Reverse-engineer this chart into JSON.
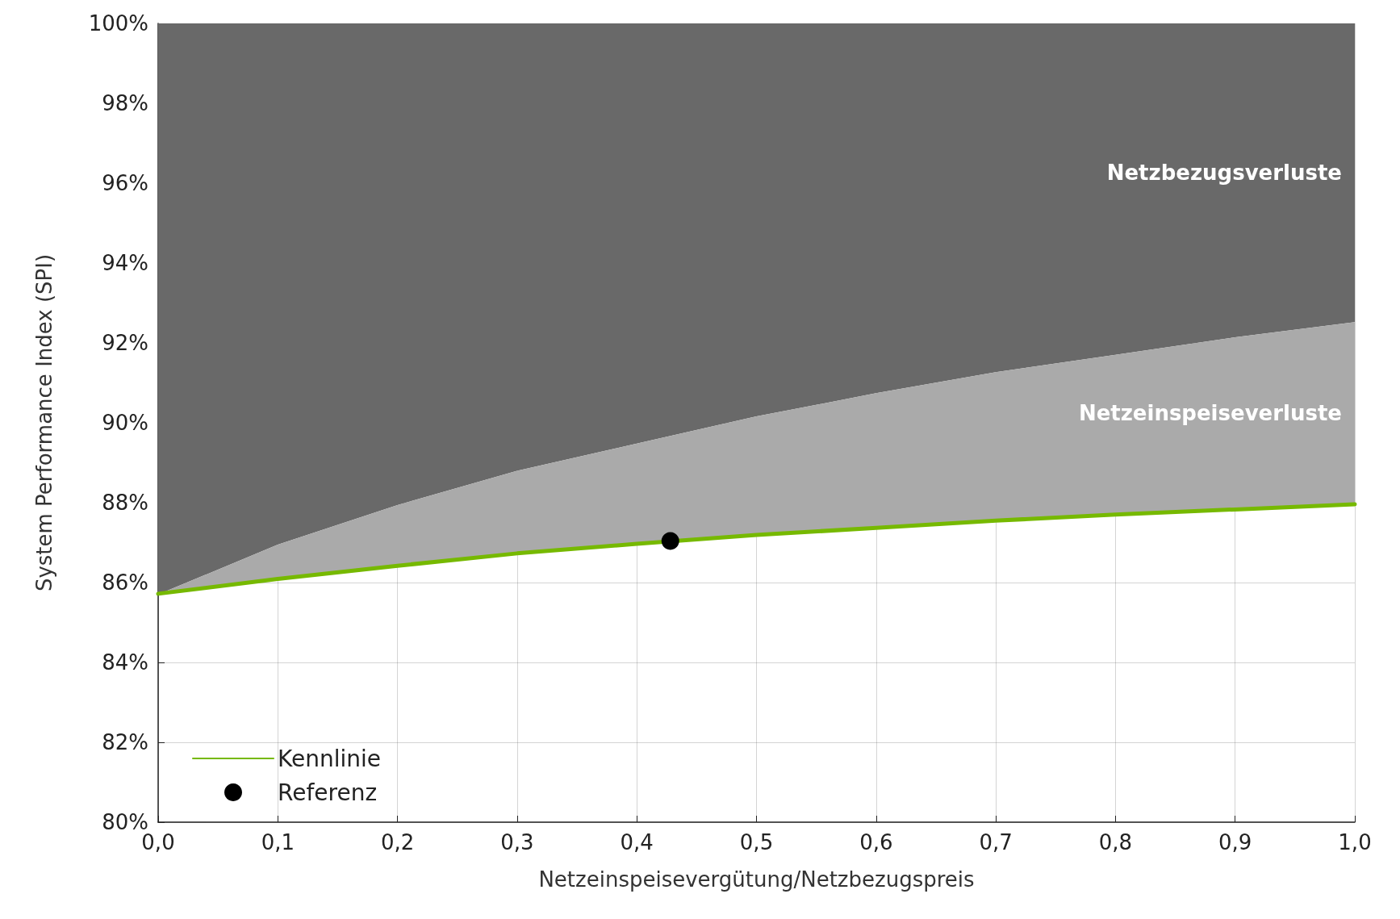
{
  "chart_data": {
    "type": "line",
    "xlabel": "Netzeinspeisevergütung/Netzbezugspreis",
    "ylabel": "System Performance Index (SPI)",
    "xlim": [
      0,
      1
    ],
    "ylim": [
      80,
      100
    ],
    "xticks": [
      {
        "value": 0,
        "label": "0,0"
      },
      {
        "value": 0.1,
        "label": "0,1"
      },
      {
        "value": 0.2,
        "label": "0,2"
      },
      {
        "value": 0.3,
        "label": "0,3"
      },
      {
        "value": 0.4,
        "label": "0,4"
      },
      {
        "value": 0.5,
        "label": "0,5"
      },
      {
        "value": 0.6,
        "label": "0,6"
      },
      {
        "value": 0.7,
        "label": "0,7"
      },
      {
        "value": 0.8,
        "label": "0,8"
      },
      {
        "value": 0.9,
        "label": "0,9"
      },
      {
        "value": 1,
        "label": "1,0"
      }
    ],
    "yticks": [
      {
        "value": 80,
        "label": "80%"
      },
      {
        "value": 82,
        "label": "82%"
      },
      {
        "value": 84,
        "label": "84%"
      },
      {
        "value": 86,
        "label": "86%"
      },
      {
        "value": 88,
        "label": "88%"
      },
      {
        "value": 90,
        "label": "90%"
      },
      {
        "value": 92,
        "label": "92%"
      },
      {
        "value": 94,
        "label": "94%"
      },
      {
        "value": 96,
        "label": "96%"
      },
      {
        "value": 98,
        "label": "98%"
      },
      {
        "value": 100,
        "label": "100%"
      }
    ],
    "grid": true,
    "legend": "bottom left",
    "series": [
      {
        "name": "Netzbezugsverluste",
        "type": "area",
        "color": "#696969",
        "x": [
          0,
          0.1,
          0.2,
          0.3,
          0.4,
          0.5,
          0.6,
          0.7,
          0.8,
          0.9,
          1
        ],
        "values": [
          100,
          100,
          100,
          100,
          100,
          100,
          100,
          100,
          100,
          100,
          100
        ]
      },
      {
        "name": "Netzeinspeiseverluste",
        "type": "area",
        "color": "#aaaaaa",
        "x": [
          0,
          0.1,
          0.2,
          0.3,
          0.4,
          0.5,
          0.6,
          0.7,
          0.8,
          0.9,
          1
        ],
        "values": [
          85.7,
          86.95,
          87.94,
          88.8,
          89.48,
          90.16,
          90.74,
          91.27,
          91.7,
          92.14,
          92.52
        ]
      },
      {
        "name": "Kennlinie",
        "color": "#76b900",
        "line_style": "solid",
        "marker": "none",
        "x": [
          0,
          0.1,
          0.2,
          0.3,
          0.4,
          0.5,
          0.6,
          0.7,
          0.8,
          0.9,
          1
        ],
        "values": [
          85.72,
          86.09,
          86.42,
          86.73,
          86.97,
          87.19,
          87.37,
          87.55,
          87.7,
          87.83,
          87.96
        ]
      },
      {
        "name": "Referenz",
        "type": "scatter",
        "color": "#000000",
        "marker": "circle",
        "x": [
          0.428
        ],
        "values": [
          87.04
        ]
      }
    ]
  }
}
